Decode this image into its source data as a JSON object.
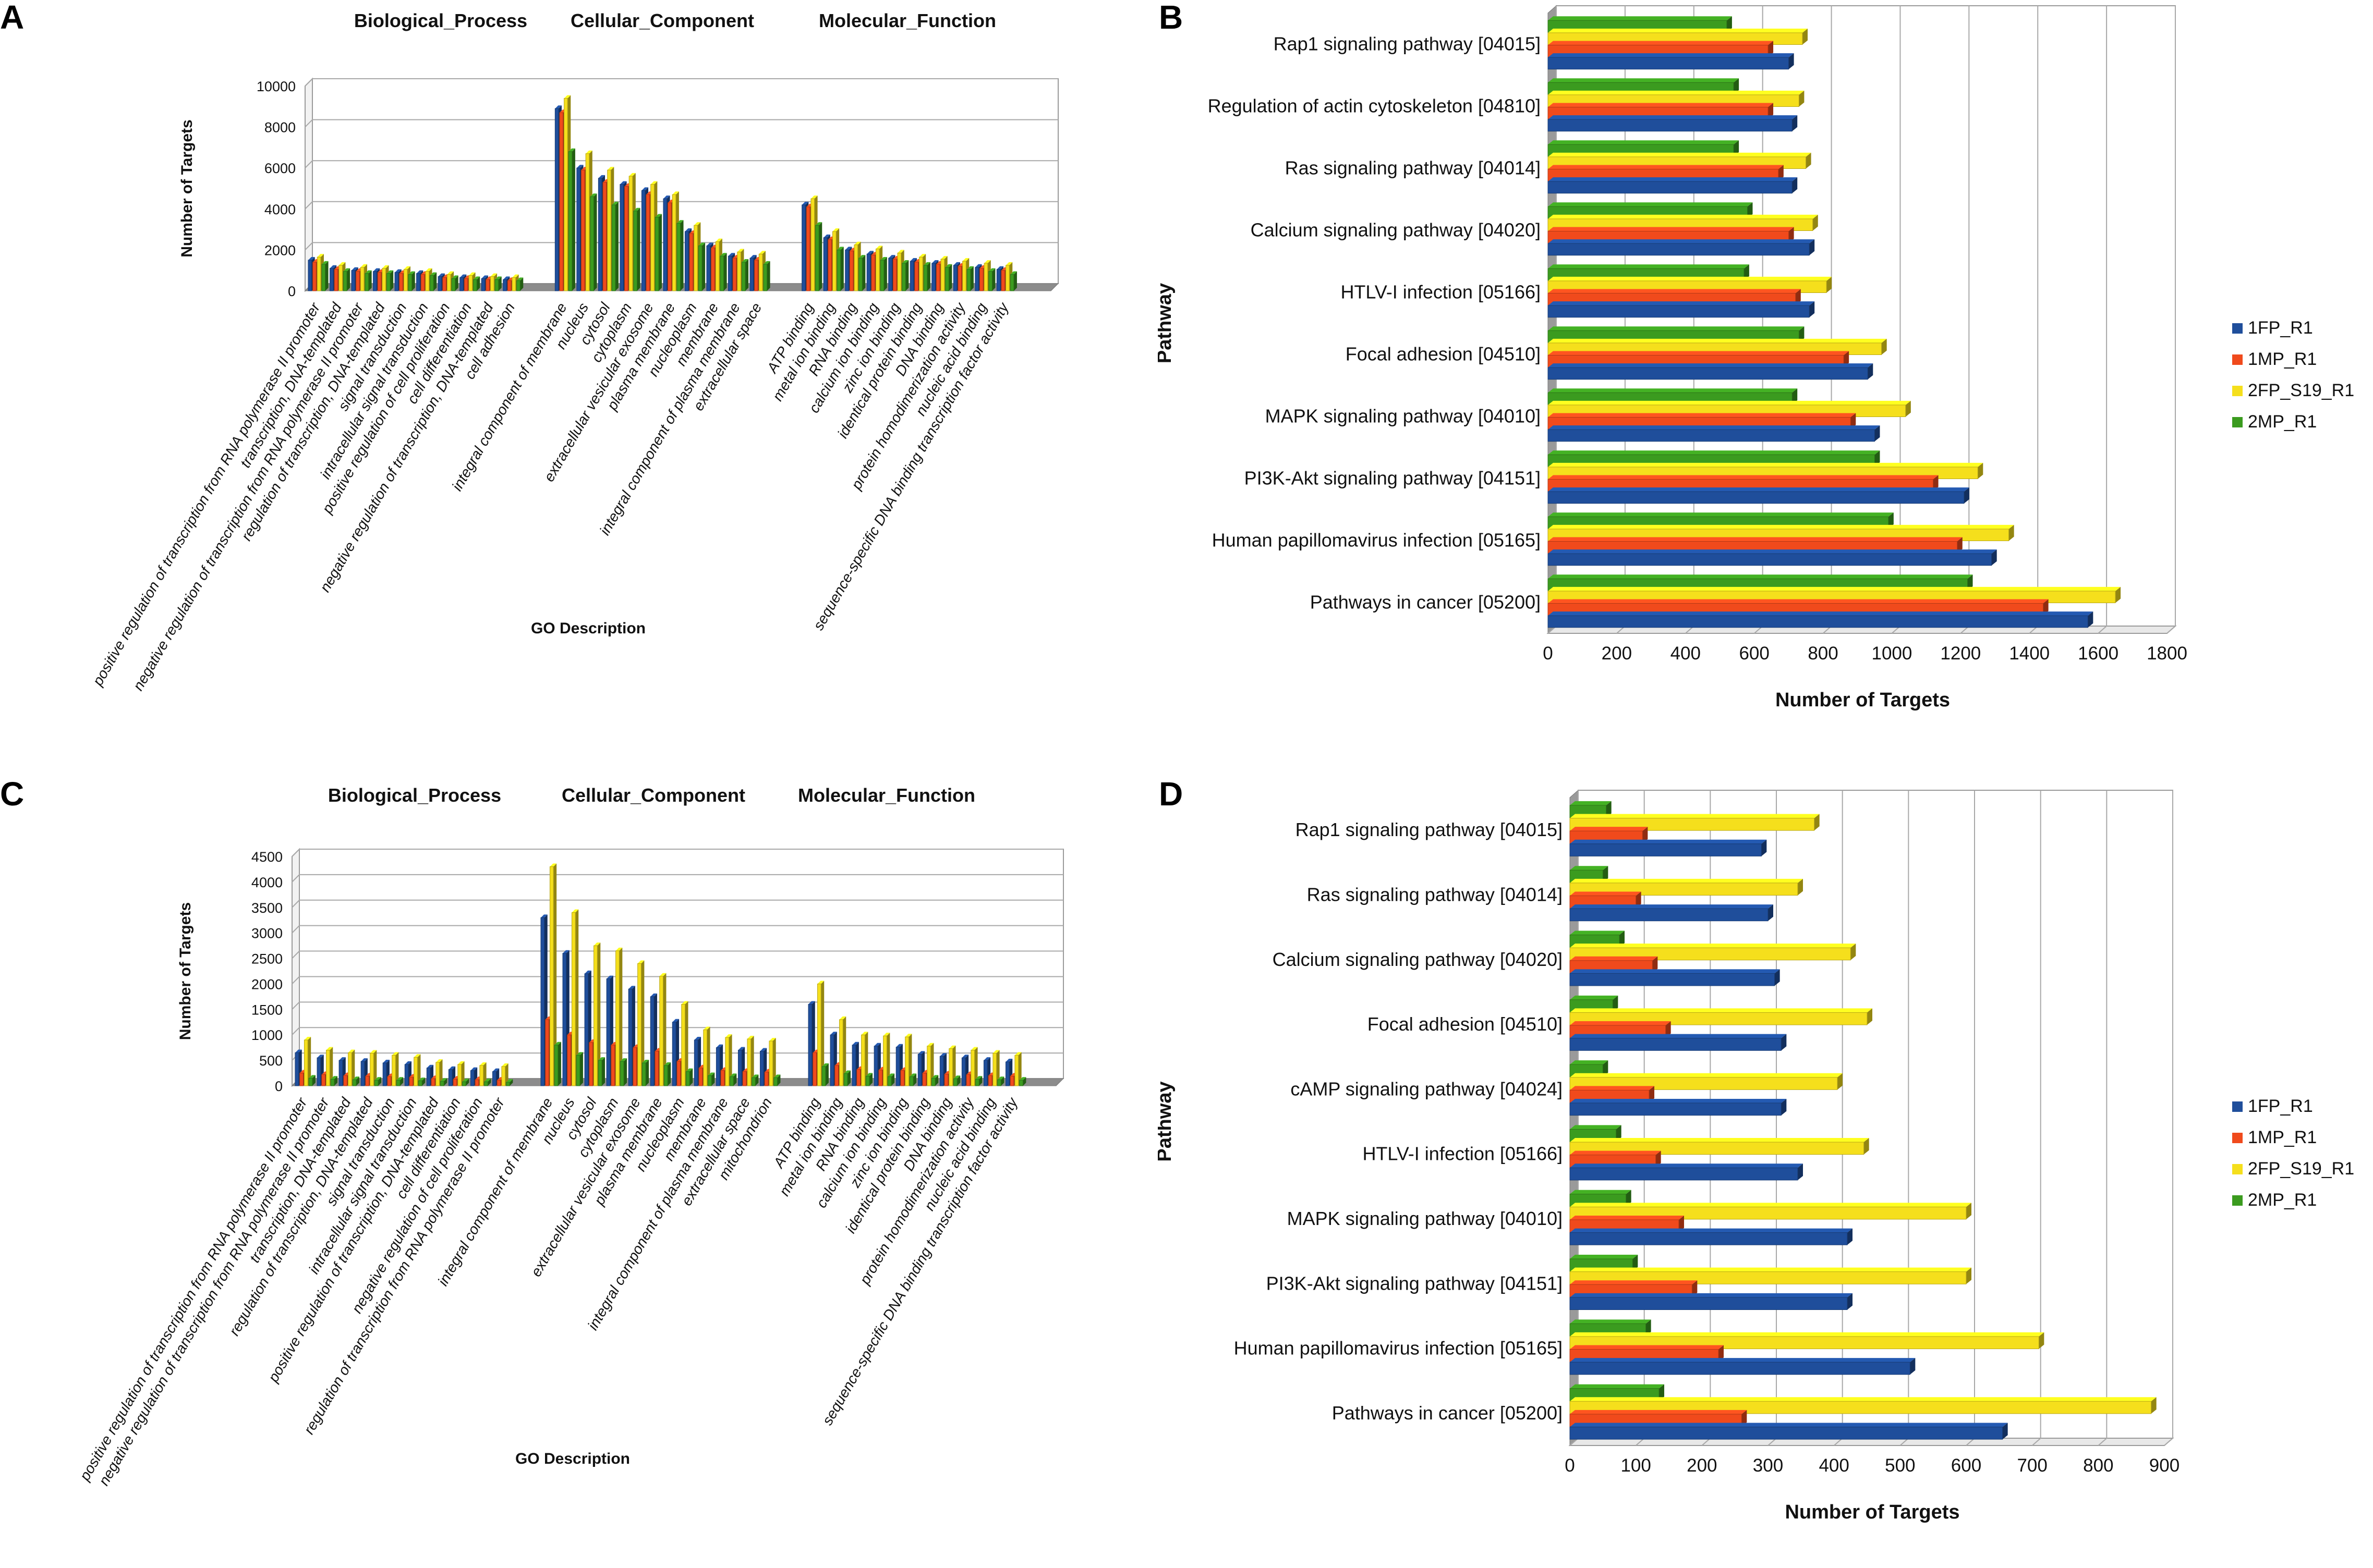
{
  "colors": {
    "1FP_R1": "#1f4e9b",
    "1MP_R1": "#f04a1c",
    "2FP_S19_R1": "#f5df1c",
    "2MP_R1": "#3b9b1f"
  },
  "panels": {
    "A": "A",
    "B": "B",
    "C": "C",
    "D": "D"
  },
  "chart_data": [
    {
      "id": "A",
      "type": "bar",
      "title": "",
      "group_titles": [
        "Biological_Process",
        "Cellular_Component",
        "Molecular_Function"
      ],
      "xlabel": "GO Description",
      "ylabel": "Number of Targets",
      "ylim": [
        0,
        10000
      ],
      "yticks": [
        0,
        2000,
        4000,
        6000,
        8000,
        10000
      ],
      "series_names": [
        "1FP_R1",
        "1MP_R1",
        "2FP_S19_R1",
        "2MP_R1"
      ],
      "groups": [
        {
          "name": "Biological_Process",
          "categories": [
            {
              "label": "positive regulation of transcription from RNA polymerase II promoter",
              "values": [
                1500,
                1400,
                1650,
                1300
              ]
            },
            {
              "label": "transcription, DNA-templated",
              "values": [
                1100,
                1050,
                1250,
                950
              ]
            },
            {
              "label": "negative regulation of transcription from RNA polymerase II promoter",
              "values": [
                1000,
                950,
                1150,
                850
              ]
            },
            {
              "label": "regulation of transcription, DNA-templated",
              "values": [
                950,
                900,
                1100,
                850
              ]
            },
            {
              "label": "signal transduction",
              "values": [
                900,
                850,
                1050,
                800
              ]
            },
            {
              "label": "intracellular signal transduction",
              "values": [
                850,
                800,
                950,
                750
              ]
            },
            {
              "label": "positive regulation of cell proliferation",
              "values": [
                700,
                650,
                800,
                600
              ]
            },
            {
              "label": "cell differentiation",
              "values": [
                650,
                600,
                750,
                550
              ]
            },
            {
              "label": "negative regulation of transcription, DNA-templated",
              "values": [
                600,
                550,
                700,
                550
              ]
            },
            {
              "label": "cell adhesion",
              "values": [
                550,
                500,
                650,
                500
              ]
            }
          ]
        },
        {
          "name": "Cellular_Component",
          "categories": [
            {
              "label": "integral component of membrane",
              "values": [
                8900,
                8700,
                9400,
                6800
              ]
            },
            {
              "label": "nucleus",
              "values": [
                6000,
                5900,
                6700,
                4600
              ]
            },
            {
              "label": "cytosol",
              "values": [
                5500,
                5300,
                5900,
                4200
              ]
            },
            {
              "label": "cytoplasm",
              "values": [
                5200,
                5100,
                5600,
                3900
              ]
            },
            {
              "label": "extracellular vesicular exosome",
              "values": [
                4900,
                4700,
                5200,
                3600
              ]
            },
            {
              "label": "plasma membrane",
              "values": [
                4500,
                4300,
                4700,
                3300
              ]
            },
            {
              "label": "nucleoplasm",
              "values": [
                2900,
                2800,
                3200,
                2200
              ]
            },
            {
              "label": "membrane",
              "values": [
                2200,
                2100,
                2400,
                1700
              ]
            },
            {
              "label": "integral component of plasma membrane",
              "values": [
                1700,
                1600,
                1900,
                1400
              ]
            },
            {
              "label": "extracellular space",
              "values": [
                1600,
                1500,
                1800,
                1300
              ]
            }
          ]
        },
        {
          "name": "Molecular_Function",
          "categories": [
            {
              "label": "ATP binding",
              "values": [
                4200,
                4100,
                4500,
                3200
              ]
            },
            {
              "label": "metal ion binding",
              "values": [
                2600,
                2500,
                2900,
                2000
              ]
            },
            {
              "label": "RNA binding",
              "values": [
                2000,
                1950,
                2250,
                1600
              ]
            },
            {
              "label": "calcium ion binding",
              "values": [
                1800,
                1750,
                2050,
                1500
              ]
            },
            {
              "label": "zinc ion binding",
              "values": [
                1600,
                1550,
                1850,
                1350
              ]
            },
            {
              "label": "identical protein binding",
              "values": [
                1450,
                1400,
                1650,
                1250
              ]
            },
            {
              "label": "DNA binding",
              "values": [
                1350,
                1300,
                1550,
                1150
              ]
            },
            {
              "label": "protein homodimerization activity",
              "values": [
                1250,
                1200,
                1450,
                1050
              ]
            },
            {
              "label": "nucleic acid binding",
              "values": [
                1150,
                1100,
                1350,
                950
              ]
            },
            {
              "label": "sequence-specific DNA binding transcription factor activity",
              "values": [
                1050,
                1000,
                1250,
                800
              ]
            }
          ]
        }
      ]
    },
    {
      "id": "B",
      "type": "bar",
      "orientation": "horizontal",
      "title": "",
      "xlabel": "Number of Targets",
      "ylabel": "Pathway",
      "xlim": [
        0,
        1800
      ],
      "xticks": [
        0,
        200,
        400,
        600,
        800,
        1000,
        1200,
        1400,
        1600,
        1800
      ],
      "legend": "right",
      "categories": [
        "Rap1 signaling pathway [04015]",
        "Regulation of actin cytoskeleton [04810]",
        "Ras signaling pathway [04014]",
        "Calcium signaling pathway [04020]",
        "HTLV-I infection [05166]",
        "Focal adhesion [04510]",
        "MAPK signaling pathway [04010]",
        "PI3K-Akt signaling pathway [04151]",
        "Human papillomavirus infection [05165]",
        "Pathways in cancer [05200]"
      ],
      "series": [
        {
          "name": "1FP_R1",
          "values": [
            700,
            710,
            710,
            760,
            760,
            930,
            950,
            1210,
            1290,
            1570
          ]
        },
        {
          "name": "1MP_R1",
          "values": [
            640,
            640,
            670,
            700,
            720,
            860,
            880,
            1120,
            1190,
            1440
          ]
        },
        {
          "name": "2FP_S19_R1",
          "values": [
            740,
            730,
            750,
            770,
            810,
            970,
            1040,
            1250,
            1340,
            1650
          ]
        },
        {
          "name": "2MP_R1",
          "values": [
            520,
            540,
            540,
            580,
            570,
            730,
            710,
            950,
            990,
            1220
          ]
        }
      ]
    },
    {
      "id": "C",
      "type": "bar",
      "title": "",
      "group_titles": [
        "Biological_Process",
        "Cellular_Component",
        "Molecular_Function"
      ],
      "xlabel": "GO Description",
      "ylabel": "Number of Targets",
      "ylim": [
        0,
        4500
      ],
      "yticks": [
        0,
        500,
        1000,
        1500,
        2000,
        2500,
        3000,
        3500,
        4000,
        4500
      ],
      "series_names": [
        "1FP_R1",
        "1MP_R1",
        "2FP_S19_R1",
        "2MP_R1"
      ],
      "groups": [
        {
          "name": "Biological_Process",
          "categories": [
            {
              "label": "positive regulation of transcription from RNA polymerase II promoter",
              "values": [
                650,
                250,
                900,
                150
              ]
            },
            {
              "label": "negative regulation of transcription from RNA polymerase II promoter",
              "values": [
                550,
                220,
                700,
                130
              ]
            },
            {
              "label": "transcription, DNA-templated",
              "values": [
                500,
                200,
                650,
                120
              ]
            },
            {
              "label": "regulation of transcription, DNA-templated",
              "values": [
                480,
                190,
                640,
                110
              ]
            },
            {
              "label": "signal transduction",
              "values": [
                450,
                180,
                600,
                110
              ]
            },
            {
              "label": "intracellular signal transduction",
              "values": [
                420,
                170,
                560,
                100
              ]
            },
            {
              "label": "positive regulation of transcription, DNA-templated",
              "values": [
                350,
                140,
                460,
                90
              ]
            },
            {
              "label": "cell differentiation",
              "values": [
                320,
                130,
                420,
                80
              ]
            },
            {
              "label": "negative regulation of cell proliferation",
              "values": [
                300,
                120,
                400,
                80
              ]
            },
            {
              "label": "regulation of transcription from RNA polymerase II promoter",
              "values": [
                280,
                110,
                380,
                70
              ]
            }
          ]
        },
        {
          "name": "Cellular_Component",
          "categories": [
            {
              "label": "integral component of membrane",
              "values": [
                3300,
                1300,
                4300,
                800
              ]
            },
            {
              "label": "nucleus",
              "values": [
                2600,
                1000,
                3400,
                600
              ]
            },
            {
              "label": "cytosol",
              "values": [
                2200,
                850,
                2750,
                500
              ]
            },
            {
              "label": "cytoplasm",
              "values": [
                2100,
                800,
                2650,
                480
              ]
            },
            {
              "label": "extracellular vesicular exosome",
              "values": [
                1900,
                750,
                2400,
                450
              ]
            },
            {
              "label": "plasma membrane",
              "values": [
                1750,
                680,
                2150,
                400
              ]
            },
            {
              "label": "nucleoplasm",
              "values": [
                1250,
                480,
                1600,
                280
              ]
            },
            {
              "label": "membrane",
              "values": [
                900,
                350,
                1100,
                200
              ]
            },
            {
              "label": "integral component of plasma membrane",
              "values": [
                750,
                300,
                950,
                180
              ]
            },
            {
              "label": "extracellular space",
              "values": [
                700,
                280,
                920,
                160
              ]
            },
            {
              "label": "mitochondrion",
              "values": [
                680,
                270,
                880,
                160
              ]
            }
          ]
        },
        {
          "name": "Molecular_Function",
          "categories": [
            {
              "label": "ATP binding",
              "values": [
                1600,
                650,
                2000,
                380
              ]
            },
            {
              "label": "metal ion binding",
              "values": [
                1000,
                400,
                1300,
                240
              ]
            },
            {
              "label": "RNA binding",
              "values": [
                800,
                320,
                1000,
                190
              ]
            },
            {
              "label": "calcium ion binding",
              "values": [
                780,
                310,
                980,
                180
              ]
            },
            {
              "label": "zinc ion binding",
              "values": [
                760,
                300,
                960,
                180
              ]
            },
            {
              "label": "identical protein binding",
              "values": [
                620,
                250,
                780,
                150
              ]
            },
            {
              "label": "DNA binding",
              "values": [
                580,
                230,
                730,
                140
              ]
            },
            {
              "label": "protein homodimerization activity",
              "values": [
                550,
                220,
                700,
                130
              ]
            },
            {
              "label": "nucleic acid binding",
              "values": [
                500,
                200,
                640,
                120
              ]
            },
            {
              "label": "sequence-specific DNA binding transcription factor activity",
              "values": [
                470,
                190,
                600,
                110
              ]
            }
          ]
        }
      ]
    },
    {
      "id": "D",
      "type": "bar",
      "orientation": "horizontal",
      "title": "",
      "xlabel": "Number of Targets",
      "ylabel": "Pathway",
      "xlim": [
        0,
        900
      ],
      "xticks": [
        0,
        100,
        200,
        300,
        400,
        500,
        600,
        700,
        800,
        900
      ],
      "legend": "right",
      "categories": [
        "Rap1 signaling pathway [04015]",
        "Ras signaling pathway [04014]",
        "Calcium signaling pathway [04020]",
        "Focal adhesion [04510]",
        "cAMP signaling pathway [04024]",
        "HTLV-I infection [05166]",
        "MAPK signaling pathway [04010]",
        "PI3K-Akt signaling pathway [04151]",
        "Human papillomavirus infection [05165]",
        "Pathways in cancer [05200]"
      ],
      "series": [
        {
          "name": "1FP_R1",
          "values": [
            290,
            300,
            310,
            320,
            320,
            345,
            420,
            420,
            515,
            655
          ]
        },
        {
          "name": "1MP_R1",
          "values": [
            110,
            100,
            125,
            145,
            120,
            130,
            165,
            185,
            225,
            260
          ]
        },
        {
          "name": "2FP_S19_R1",
          "values": [
            370,
            345,
            425,
            450,
            405,
            445,
            600,
            600,
            710,
            880
          ]
        },
        {
          "name": "2MP_R1",
          "values": [
            55,
            50,
            75,
            65,
            50,
            70,
            85,
            95,
            115,
            135
          ]
        }
      ]
    }
  ]
}
